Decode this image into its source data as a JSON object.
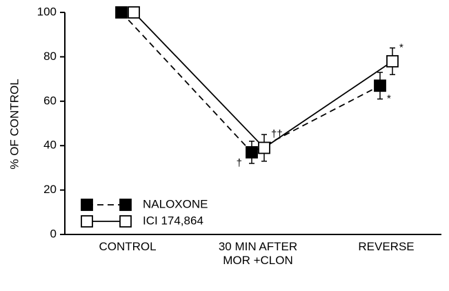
{
  "chart_data": {
    "type": "line",
    "y_label": "% OF CONTROL",
    "categories": [
      "CONTROL",
      "30 MIN AFTER\nMOR +CLON",
      "REVERSE"
    ],
    "series": [
      {
        "name": "NALOXONE",
        "color": "#000",
        "filled": true,
        "dashed": true,
        "values": [
          100,
          37,
          67
        ],
        "errors": [
          0,
          5,
          6
        ],
        "annotations": [
          null,
          "†",
          "*"
        ]
      },
      {
        "name": "ICI 174,864",
        "color": "#000",
        "filled": false,
        "dashed": false,
        "values": [
          100,
          39,
          78
        ],
        "errors": [
          0,
          6,
          6
        ],
        "annotations": [
          null,
          "††",
          "*"
        ]
      }
    ],
    "ylim": [
      0,
      100
    ],
    "yticks": [
      0,
      20,
      40,
      60,
      80,
      100
    ],
    "grid": false
  }
}
